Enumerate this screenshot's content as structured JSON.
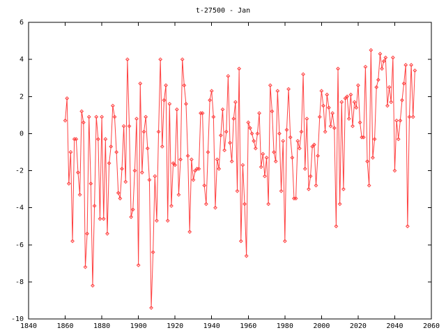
{
  "chart_data": {
    "type": "line",
    "title": "t-27500 - Jan",
    "xlabel": "",
    "ylabel": "",
    "xlim": [
      1840,
      2060
    ],
    "ylim": [
      -10,
      6
    ],
    "x_ticks": [
      1840,
      1860,
      1880,
      1900,
      1920,
      1940,
      1960,
      1980,
      2000,
      2020,
      2040,
      2060
    ],
    "y_ticks": [
      -10,
      -8,
      -6,
      -4,
      -2,
      0,
      2,
      4,
      6
    ],
    "x_tick_labels": [
      "1840",
      "1860",
      "1880",
      "1900",
      "1920",
      "1940",
      "1960",
      "1980",
      "2000",
      "2020",
      "2040",
      "2060"
    ],
    "y_tick_labels": [
      "-10",
      "-8",
      "-6",
      "-4",
      "-2",
      "0",
      "2",
      "4",
      "6"
    ],
    "grid": false,
    "line_color": "#ff4040",
    "marker": "diamond",
    "series": [
      {
        "x_start": 1860,
        "x_step": 1,
        "values": [
          0.7,
          1.9,
          -2.7,
          -1.0,
          -5.8,
          -0.3,
          -0.3,
          -2.1,
          -3.3,
          1.2,
          0.6,
          -7.2,
          -5.4,
          0.9,
          -2.7,
          -8.2,
          -3.9,
          0.9,
          -0.3,
          -4.6,
          0.9,
          -4.6,
          -0.3,
          -5.4,
          -1.6,
          -0.7,
          1.5,
          0.9,
          -1.0,
          -3.2,
          -3.5,
          -1.9,
          0.4,
          -2.6,
          4.0,
          0.4,
          -4.5,
          -4.1,
          -2.0,
          0.8,
          -7.1,
          2.7,
          -2.1,
          0.1,
          0.9,
          -0.8,
          -2.5,
          -9.4,
          -6.4,
          -2.3,
          -4.7,
          0.1,
          4.0,
          -0.7,
          1.8,
          2.6,
          -4.7,
          1.6,
          -3.9,
          -1.6,
          -1.7,
          1.3,
          -3.3,
          -1.4,
          4.0,
          2.6,
          1.6,
          -1.2,
          -5.3,
          -1.4,
          -2.5,
          -2.0,
          -1.9,
          -1.9,
          1.1,
          1.1,
          -2.8,
          -3.8,
          -1.0,
          1.8,
          2.3,
          0.9,
          -4.0,
          -1.4,
          -1.9,
          -0.1,
          1.3,
          -0.9,
          0.1,
          3.1,
          -0.5,
          -1.5,
          0.8,
          1.7,
          -3.1,
          3.5,
          -5.8,
          -1.7,
          -3.8,
          -6.6,
          0.6,
          0.3,
          0.0,
          -0.4,
          -0.8,
          0.0,
          1.1,
          -1.8,
          -1.1,
          -2.3,
          -1.3,
          -3.8,
          2.6,
          1.2,
          -1.0,
          -1.5,
          2.3,
          0.0,
          -3.1,
          -0.4,
          -5.8,
          0.2,
          2.4,
          -0.2,
          -1.3,
          -3.5,
          -3.5,
          -0.4,
          -0.8,
          0.1,
          3.2,
          -1.9,
          0.8,
          -3.0,
          -2.3,
          -0.7,
          -0.6,
          -2.8,
          -1.2,
          0.9,
          2.3,
          1.5,
          0.1,
          2.1,
          1.4,
          0.4,
          1.1,
          0.3,
          -5.0,
          3.5,
          -3.8,
          1.7,
          -3.0,
          1.9,
          2.0,
          0.8,
          2.1,
          0.4,
          1.7,
          1.4,
          2.6,
          0.6,
          -0.2,
          -0.2,
          3.6,
          -1.5,
          -2.8,
          4.5,
          -1.3,
          -0.3,
          2.5,
          2.9,
          4.3,
          3.5,
          3.9,
          4.1,
          1.5,
          2.5,
          1.7,
          4.1,
          -2.0,
          0.7,
          -0.3,
          0.7,
          1.8,
          2.7,
          3.7,
          -5.0,
          0.9,
          3.7,
          0.9,
          3.4
        ]
      }
    ]
  }
}
